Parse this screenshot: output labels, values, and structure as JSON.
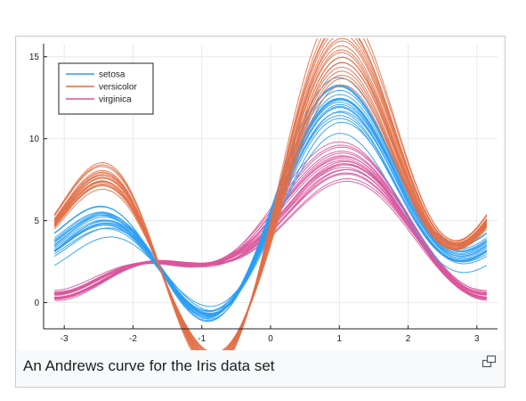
{
  "caption": "An Andrews curve for the Iris data set",
  "magnify_icon": "magnify-clip-icon",
  "chart_data": {
    "type": "line",
    "title": "",
    "xlabel": "",
    "ylabel": "",
    "xlim": [
      -3.3,
      3.3
    ],
    "ylim": [
      -1.6,
      15.8
    ],
    "xticks": [
      -3,
      -2,
      -1,
      0,
      1,
      2,
      3
    ],
    "yticks": [
      0,
      5,
      10,
      15
    ],
    "grid": true,
    "legend_position": "top-left",
    "series": [
      {
        "name": "setosa",
        "color": "#2a9df4",
        "line_count": 50,
        "mean_coefficients": [
          7.17,
          4.0,
          0.78,
          3.44,
          -0.83
        ],
        "coefficients": [
          [
            7.1,
            4.0,
            0.8,
            3.4,
            -0.8
          ],
          [
            6.8,
            3.8,
            0.7,
            3.2,
            -0.9
          ],
          [
            7.3,
            4.1,
            0.7,
            3.5,
            -0.7
          ],
          [
            6.6,
            3.7,
            0.9,
            3.1,
            -0.8
          ],
          [
            7.5,
            4.3,
            0.8,
            3.6,
            -0.8
          ],
          [
            6.4,
            3.5,
            0.7,
            3.0,
            -1.0
          ],
          [
            7.8,
            4.4,
            0.6,
            3.8,
            -0.7
          ],
          [
            7.0,
            3.9,
            0.9,
            3.3,
            -0.9
          ],
          [
            7.2,
            4.0,
            0.8,
            3.5,
            -0.8
          ],
          [
            6.9,
            3.8,
            0.8,
            3.4,
            -0.9
          ],
          [
            8.0,
            4.6,
            0.7,
            3.9,
            -0.7
          ],
          [
            6.7,
            3.7,
            0.8,
            3.3,
            -0.8
          ],
          [
            7.4,
            4.2,
            0.6,
            3.6,
            -0.8
          ],
          [
            5.9,
            3.2,
            1.0,
            2.8,
            -0.9
          ],
          [
            7.6,
            4.3,
            0.9,
            3.7,
            -0.8
          ],
          [
            7.1,
            4.1,
            0.8,
            3.4,
            -0.9
          ],
          [
            6.5,
            3.6,
            0.7,
            3.2,
            -0.8
          ],
          [
            7.7,
            4.4,
            0.8,
            3.7,
            -0.7
          ],
          [
            6.8,
            3.9,
            0.9,
            3.3,
            -0.8
          ],
          [
            7.3,
            4.0,
            0.7,
            3.5,
            -0.9
          ]
        ]
      },
      {
        "name": "versicolor",
        "color": "#e26f46",
        "line_count": 50,
        "mean_coefficients": [
          8.08,
          5.16,
          -0.36,
          5.2,
          -1.2
        ],
        "coefficients": [
          [
            8.0,
            5.1,
            -0.4,
            5.2,
            -1.2
          ],
          [
            8.4,
            5.5,
            -0.3,
            5.5,
            -1.3
          ],
          [
            7.6,
            4.8,
            -0.4,
            4.9,
            -1.1
          ],
          [
            8.8,
            5.9,
            -0.2,
            5.8,
            -1.3
          ],
          [
            7.2,
            4.5,
            -0.5,
            4.6,
            -1.1
          ],
          [
            8.2,
            5.3,
            -0.3,
            5.3,
            -1.2
          ],
          [
            9.1,
            6.1,
            -0.3,
            6.0,
            -1.4
          ],
          [
            7.8,
            5.0,
            -0.4,
            5.1,
            -1.2
          ],
          [
            8.6,
            5.7,
            -0.3,
            5.6,
            -1.3
          ],
          [
            7.4,
            4.6,
            -0.5,
            4.8,
            -1.1
          ],
          [
            8.1,
            5.2,
            -0.3,
            5.3,
            -1.2
          ],
          [
            9.3,
            6.3,
            -0.2,
            6.2,
            -1.4
          ],
          [
            7.9,
            5.0,
            -0.4,
            5.0,
            -1.2
          ],
          [
            8.5,
            5.6,
            -0.3,
            5.5,
            -1.3
          ],
          [
            7.5,
            4.7,
            -0.4,
            4.8,
            -1.1
          ],
          [
            8.3,
            5.4,
            -0.3,
            5.4,
            -1.2
          ],
          [
            8.9,
            5.9,
            -0.3,
            5.9,
            -1.3
          ],
          [
            7.7,
            4.9,
            -0.4,
            5.0,
            -1.1
          ],
          [
            8.0,
            5.2,
            -0.4,
            5.1,
            -1.2
          ],
          [
            8.7,
            5.8,
            -0.2,
            5.7,
            -1.3
          ]
        ]
      },
      {
        "name": "virginica",
        "color": "#d9559b",
        "line_count": 50,
        "mean_coefficients": [
          5.27,
          2.38,
          2.16,
          1.12,
          -1.16
        ],
        "coefficients": [
          [
            5.2,
            2.4,
            2.2,
            1.1,
            -1.2
          ],
          [
            5.5,
            2.6,
            2.3,
            1.3,
            -1.1
          ],
          [
            4.9,
            2.2,
            2.0,
            1.0,
            -1.2
          ],
          [
            5.8,
            2.8,
            2.4,
            1.4,
            -1.1
          ],
          [
            5.0,
            2.3,
            2.1,
            1.0,
            -1.3
          ],
          [
            5.4,
            2.5,
            2.2,
            1.2,
            -1.1
          ],
          [
            4.8,
            2.1,
            1.9,
            0.9,
            -1.2
          ],
          [
            5.6,
            2.7,
            2.3,
            1.3,
            -1.1
          ],
          [
            5.3,
            2.4,
            2.2,
            1.1,
            -1.2
          ],
          [
            5.1,
            2.3,
            2.1,
            1.0,
            -1.2
          ],
          [
            6.0,
            2.9,
            2.5,
            1.5,
            -1.0
          ],
          [
            5.2,
            2.4,
            2.1,
            1.1,
            -1.3
          ],
          [
            5.7,
            2.7,
            2.4,
            1.3,
            -1.1
          ],
          [
            4.7,
            2.0,
            1.9,
            0.9,
            -1.2
          ],
          [
            5.5,
            2.5,
            2.3,
            1.2,
            -1.1
          ],
          [
            5.0,
            2.2,
            2.0,
            1.0,
            -1.2
          ],
          [
            5.9,
            2.8,
            2.5,
            1.4,
            -1.1
          ],
          [
            5.3,
            2.5,
            2.1,
            1.2,
            -1.2
          ],
          [
            5.1,
            2.3,
            2.2,
            1.1,
            -1.2
          ],
          [
            5.6,
            2.6,
            2.2,
            1.2,
            -1.1
          ]
        ]
      }
    ]
  }
}
